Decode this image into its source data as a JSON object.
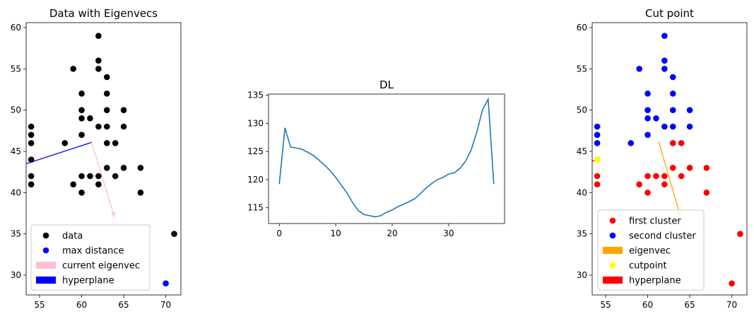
{
  "chart_data": [
    {
      "type": "scatter",
      "title": "Data with Eigenvecs",
      "xlim": [
        53.4,
        71.8
      ],
      "ylim": [
        27.6,
        60.6
      ],
      "xticks": [
        55,
        60,
        65,
        70
      ],
      "yticks": [
        30,
        35,
        40,
        45,
        50,
        55,
        60
      ],
      "legend_position": "lower-left",
      "legend": [
        {
          "label": "data",
          "kind": "dot",
          "color": "#000000"
        },
        {
          "label": "max distance",
          "kind": "dot",
          "color": "#0000ff"
        },
        {
          "label": "current eigenvec",
          "kind": "patch",
          "color": "#ffc0cb"
        },
        {
          "label": "hyperplane",
          "kind": "patch",
          "color": "#0000ff"
        }
      ],
      "series": [
        {
          "name": "data",
          "color": "#000000",
          "points": [
            [
              54,
              48
            ],
            [
              54,
              47
            ],
            [
              54,
              46
            ],
            [
              54,
              44
            ],
            [
              54,
              42
            ],
            [
              54,
              41
            ],
            [
              58,
              46
            ],
            [
              59,
              55
            ],
            [
              59,
              41
            ],
            [
              60,
              52
            ],
            [
              60,
              50
            ],
            [
              60,
              49
            ],
            [
              60,
              47
            ],
            [
              60,
              42
            ],
            [
              60,
              40
            ],
            [
              61,
              49
            ],
            [
              61,
              42
            ],
            [
              62,
              59
            ],
            [
              62,
              56
            ],
            [
              62,
              55
            ],
            [
              62,
              48
            ],
            [
              62,
              42
            ],
            [
              62,
              41
            ],
            [
              63,
              54
            ],
            [
              63,
              52
            ],
            [
              63,
              50
            ],
            [
              63,
              48
            ],
            [
              63,
              46
            ],
            [
              63,
              43
            ],
            [
              64,
              46
            ],
            [
              64,
              42
            ],
            [
              65,
              50
            ],
            [
              65,
              48
            ],
            [
              65,
              43
            ],
            [
              67,
              43
            ],
            [
              67,
              40
            ],
            [
              71,
              35
            ]
          ]
        },
        {
          "name": "max distance",
          "color": "#0000ff",
          "points": [
            [
              70,
              29
            ]
          ]
        }
      ],
      "arrow": {
        "name": "current eigenvec",
        "color": "#ffc0cb",
        "from": [
          61.2,
          46.1
        ],
        "to": [
          63.9,
          37.0
        ]
      },
      "line": {
        "name": "hyperplane",
        "color": "#0000ff",
        "from": [
          53.4,
          43.5
        ],
        "to": [
          61.2,
          46.1
        ]
      }
    },
    {
      "type": "line",
      "title": "DL",
      "xlim": [
        -1.9,
        39.9
      ],
      "ylim": [
        112.2,
        135.2
      ],
      "xticks": [
        0,
        10,
        20,
        30
      ],
      "yticks": [
        115,
        120,
        125,
        130,
        135
      ],
      "series": [
        {
          "color": "#1f77b4",
          "x": [
            0,
            1,
            2,
            3,
            4,
            5,
            6,
            7,
            8,
            9,
            10,
            11,
            12,
            13,
            14,
            15,
            16,
            17,
            18,
            19,
            20,
            21,
            22,
            23,
            24,
            25,
            26,
            27,
            28,
            29,
            30,
            31,
            32,
            33,
            34,
            35,
            36,
            37,
            38
          ],
          "y": [
            119.2,
            129.2,
            125.8,
            125.6,
            125.4,
            124.9,
            124.3,
            123.5,
            122.6,
            121.6,
            120.4,
            119.0,
            117.6,
            115.9,
            114.5,
            113.8,
            113.6,
            113.4,
            113.6,
            114.2,
            114.6,
            115.2,
            115.6,
            116.1,
            116.6,
            117.5,
            118.5,
            119.3,
            120.0,
            120.4,
            121.0,
            121.2,
            122.0,
            123.3,
            125.3,
            128.5,
            132.4,
            134.3,
            119.2
          ]
        }
      ]
    },
    {
      "type": "scatter",
      "title": "Cut point",
      "xlim": [
        53.4,
        71.8
      ],
      "ylim": [
        27.6,
        60.6
      ],
      "xticks": [
        55,
        60,
        65,
        70
      ],
      "yticks": [
        30,
        35,
        40,
        45,
        50,
        55,
        60
      ],
      "legend_position": "lower-center",
      "legend": [
        {
          "label": "first cluster",
          "kind": "dot",
          "color": "#ff0000"
        },
        {
          "label": "second cluster",
          "kind": "dot",
          "color": "#0000ff"
        },
        {
          "label": "eigenvec",
          "kind": "patch",
          "color": "#ffa500"
        },
        {
          "label": "cutpoint",
          "kind": "dot",
          "color": "#ffff00"
        },
        {
          "label": "hyperplane",
          "kind": "patch",
          "color": "#ff0000"
        }
      ],
      "series": [
        {
          "name": "first cluster",
          "color": "#ff0000",
          "points": [
            [
              54,
              44
            ],
            [
              54,
              42
            ],
            [
              54,
              41
            ],
            [
              59,
              41
            ],
            [
              60,
              42
            ],
            [
              60,
              40
            ],
            [
              61,
              42
            ],
            [
              62,
              42
            ],
            [
              62,
              41
            ],
            [
              63,
              46
            ],
            [
              63,
              43
            ],
            [
              64,
              46
            ],
            [
              64,
              42
            ],
            [
              65,
              43
            ],
            [
              67,
              43
            ],
            [
              67,
              40
            ],
            [
              70,
              29
            ],
            [
              71,
              35
            ]
          ]
        },
        {
          "name": "second cluster",
          "color": "#0000ff",
          "points": [
            [
              54,
              48
            ],
            [
              54,
              47
            ],
            [
              54,
              46
            ],
            [
              58,
              46
            ],
            [
              59,
              55
            ],
            [
              60,
              52
            ],
            [
              60,
              50
            ],
            [
              60,
              49
            ],
            [
              60,
              47
            ],
            [
              61,
              49
            ],
            [
              62,
              59
            ],
            [
              62,
              56
            ],
            [
              62,
              55
            ],
            [
              62,
              48
            ],
            [
              63,
              54
            ],
            [
              63,
              52
            ],
            [
              63,
              50
            ],
            [
              63,
              48
            ],
            [
              65,
              50
            ],
            [
              65,
              48
            ]
          ]
        },
        {
          "name": "cutpoint",
          "color": "#ffff00",
          "points": [
            [
              54,
              44
            ]
          ]
        }
      ],
      "arrow": {
        "name": "eigenvec",
        "color": "#ffa500",
        "from": [
          61.3,
          46.2
        ],
        "to": [
          63.9,
          37.1
        ]
      },
      "line": {
        "name": "hyperplane",
        "color": "#ff0000",
        "from": [
          53.4,
          43.8
        ],
        "to": [
          54.0,
          44.0
        ]
      }
    }
  ]
}
